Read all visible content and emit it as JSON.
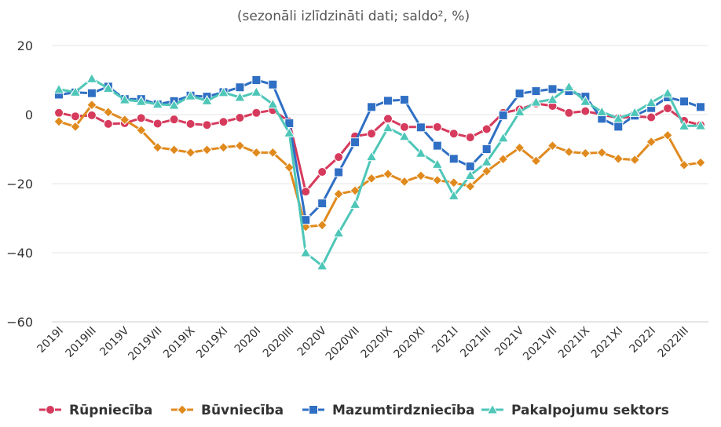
{
  "chart_data": {
    "type": "line",
    "subtitle": "(sezonāli izlīdzināti dati; saldo², %)",
    "ylim": [
      -60,
      20
    ],
    "yticks": [
      20,
      0,
      -20,
      -40,
      -60
    ],
    "x": [
      "2019I",
      "2019II",
      "2019III",
      "2019IV",
      "2019V",
      "2019VI",
      "2019VII",
      "2019VIII",
      "2019IX",
      "2019X",
      "2019XI",
      "2019XII",
      "2020I",
      "2020II",
      "2020III",
      "2020IV",
      "2020V",
      "2020VI",
      "2020VII",
      "2020VIII",
      "2020IX",
      "2020X",
      "2020XI",
      "2020XII",
      "2021I",
      "2021II",
      "2021III",
      "2021IV",
      "2021V",
      "2021VI",
      "2021VII",
      "2021VIII",
      "2021IX",
      "2021X",
      "2021XI",
      "2021XII",
      "2022I",
      "2022II",
      "2022III",
      "2022IV"
    ],
    "xtick_labels": [
      "2019I",
      "2019III",
      "2019V",
      "2019VII",
      "2019IX",
      "2019XI",
      "2020I",
      "2020III",
      "2020V",
      "2020VII",
      "2020IX",
      "2020XI",
      "2021I",
      "2021III",
      "2021V",
      "2021VII",
      "2021IX",
      "2021XI",
      "2022I",
      "2022III"
    ],
    "grid": true,
    "legend_position": "bottom",
    "series": [
      {
        "name": "Rūpniecība",
        "color": "#d63a5c",
        "marker": "circle",
        "values": [
          0.5,
          -0.5,
          -0.2,
          -2.7,
          -2.5,
          -1,
          -2.6,
          -1.4,
          -2.7,
          -3,
          -2.1,
          -0.9,
          0.5,
          1.3,
          -2,
          -22.3,
          -16.6,
          -12.3,
          -6.3,
          -5.5,
          -1.2,
          -3.6,
          -3.6,
          -3.6,
          -5.5,
          -6.6,
          -4.2,
          0.5,
          1.5,
          3.2,
          2.5,
          0.5,
          1,
          0,
          -1,
          -0.5,
          -0.8,
          1.8,
          -1.8,
          -3
        ]
      },
      {
        "name": "Būvniecība",
        "color": "#e08a1e",
        "marker": "diamond",
        "values": [
          -2,
          -3.5,
          2.8,
          0.7,
          -1.5,
          -4.5,
          -9.5,
          -10.2,
          -11,
          -10.2,
          -9.5,
          -9,
          -11,
          -11,
          -15.3,
          -32.5,
          -32,
          -23,
          -22,
          -18.5,
          -17.2,
          -19.4,
          -17.7,
          -19,
          -19.7,
          -20.8,
          -16.4,
          -12.9,
          -9.6,
          -13.4,
          -9,
          -10.8,
          -11.2,
          -11,
          -12.8,
          -13.1,
          -7.9,
          -6,
          -14.6,
          -13.9
        ]
      },
      {
        "name": "Mazumtirdzniecība",
        "color": "#2f6fc4",
        "marker": "square",
        "values": [
          5.8,
          6.4,
          6.2,
          8.1,
          4.5,
          4.5,
          3,
          3.9,
          5.5,
          5.2,
          6.5,
          7.9,
          10,
          8.7,
          -2.5,
          -30.5,
          -25.7,
          -16.7,
          -8,
          2.2,
          4,
          4.3,
          -3.7,
          -9,
          -12.8,
          -15,
          -10,
          -0.2,
          6.1,
          6.8,
          7.4,
          6.8,
          5.2,
          -1.2,
          -3.5,
          -0.3,
          1.9,
          5,
          3.8,
          2.2
        ]
      },
      {
        "name": "Pakalpojumu sektors",
        "color": "#4ec6b8",
        "marker": "triangle",
        "values": [
          7.3,
          6.5,
          10.4,
          7.6,
          4.3,
          3.8,
          3,
          2.7,
          5.4,
          4,
          6.4,
          5,
          6.5,
          3,
          -5.3,
          -40,
          -43.8,
          -34.3,
          -26,
          -12.2,
          -3.8,
          -6.3,
          -11.2,
          -14.4,
          -23.5,
          -17.6,
          -13.7,
          -6.8,
          0.8,
          3.6,
          4.4,
          8,
          3.8,
          0.8,
          -1.1,
          0.6,
          3.5,
          6.2,
          -3.3,
          -3.2
        ]
      }
    ]
  }
}
